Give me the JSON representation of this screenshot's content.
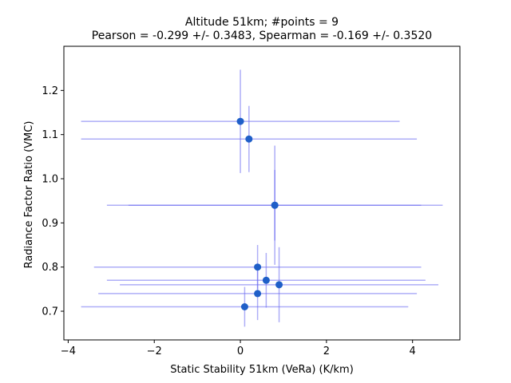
{
  "chart_data": {
    "type": "scatter",
    "title_line1": "Altitude 51km;  #points =  9",
    "title_line2": "Pearson = -0.299 +/-  0.3483, Spearman = -0.169 +/-  0.3520",
    "xlabel": "Static Stability 51km (VeRa) (K/km)",
    "ylabel": "Radiance Factor Ratio (VMC)",
    "xlim": [
      -4.1,
      5.1
    ],
    "ylim": [
      0.635,
      1.3
    ],
    "xticks": [
      -4,
      -2,
      0,
      2,
      4
    ],
    "xtick_labels": [
      "−4",
      "−2",
      "0",
      "2",
      "4"
    ],
    "yticks": [
      0.7,
      0.8,
      0.9,
      1.0,
      1.1,
      1.2
    ],
    "ytick_labels": [
      "0.7",
      "0.8",
      "0.9",
      "1.0",
      "1.1",
      "1.2"
    ],
    "grid": false,
    "marker_color": "#1f5fc8",
    "errorbar_color": "#6b6bf0",
    "points": [
      {
        "x": 0.0,
        "y": 1.13,
        "xerr_low": 3.7,
        "xerr_high": 3.7,
        "yerr_low": 0.117,
        "yerr_high": 0.117
      },
      {
        "x": 0.2,
        "y": 1.09,
        "xerr_low": 3.9,
        "xerr_high": 3.9,
        "yerr_low": 0.075,
        "yerr_high": 0.075
      },
      {
        "x": 0.8,
        "y": 0.94,
        "xerr_low": 3.9,
        "xerr_high": 3.9,
        "yerr_low": 0.135,
        "yerr_high": 0.135
      },
      {
        "x": 0.8,
        "y": 0.94,
        "xerr_low": 3.4,
        "xerr_high": 3.4,
        "yerr_low": 0.08,
        "yerr_high": 0.08
      },
      {
        "x": 0.4,
        "y": 0.8,
        "xerr_low": 3.8,
        "xerr_high": 3.8,
        "yerr_low": 0.05,
        "yerr_high": 0.05
      },
      {
        "x": 0.6,
        "y": 0.77,
        "xerr_low": 3.7,
        "xerr_high": 3.7,
        "yerr_low": 0.062,
        "yerr_high": 0.062
      },
      {
        "x": 0.9,
        "y": 0.76,
        "xerr_low": 3.7,
        "xerr_high": 3.7,
        "yerr_low": 0.085,
        "yerr_high": 0.085
      },
      {
        "x": 0.4,
        "y": 0.74,
        "xerr_low": 3.7,
        "xerr_high": 3.7,
        "yerr_low": 0.06,
        "yerr_high": 0.06
      },
      {
        "x": 0.1,
        "y": 0.71,
        "xerr_low": 3.8,
        "xerr_high": 3.8,
        "yerr_low": 0.045,
        "yerr_high": 0.045
      }
    ]
  }
}
